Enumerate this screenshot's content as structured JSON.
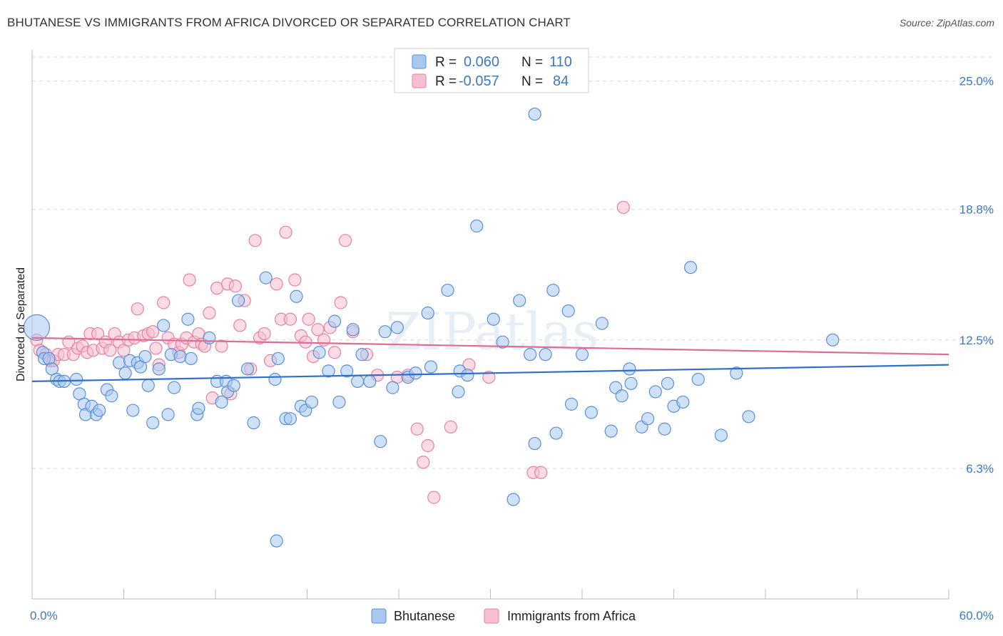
{
  "title": "BHUTANESE VS IMMIGRANTS FROM AFRICA DIVORCED OR SEPARATED CORRELATION CHART",
  "source": "Source: ZipAtlas.com",
  "watermark": "ZIPatlas",
  "colors": {
    "blue_fill": "#a8c8f0",
    "blue_stroke": "#5b8fd6",
    "blue_line": "#2f6fcc",
    "pink_fill": "#f7bfd0",
    "pink_stroke": "#e8809f",
    "pink_line": "#e36a92",
    "axis_text": "#3b78c6",
    "grid": "#d8d8d8"
  },
  "legend": {
    "rows": [
      {
        "r_label": "R =",
        "r_value": "0.060",
        "n_label": "N =",
        "n_value": "110"
      },
      {
        "r_label": "R =",
        "r_value": "-0.057",
        "n_label": "N =",
        "n_value": "84"
      }
    ]
  },
  "chart_data": {
    "type": "scatter",
    "xlabel": "",
    "ylabel": "Divorced or Separated",
    "xlim": [
      0,
      60
    ],
    "ylim": [
      0,
      26.5
    ],
    "x_tick_labels": [
      "0.0%",
      "60.0%"
    ],
    "y_ticks": [
      6.3,
      12.5,
      18.8,
      25.0
    ],
    "y_tick_labels": [
      "6.3%",
      "12.5%",
      "18.8%",
      "25.0%"
    ],
    "grid": "horizontal dashed",
    "legend_position": "top-center",
    "series": [
      {
        "name": "Bhutanese",
        "color": "blue",
        "trend": {
          "x": [
            0,
            60
          ],
          "y": [
            10.5,
            11.3
          ]
        },
        "points": [
          [
            0.3,
            13.1
          ],
          [
            0.7,
            11.9
          ],
          [
            0.8,
            11.6
          ],
          [
            1.1,
            11.6
          ],
          [
            1.3,
            11.1
          ],
          [
            1.6,
            10.6
          ],
          [
            1.8,
            10.5
          ],
          [
            2.1,
            10.5
          ],
          [
            2.9,
            10.6
          ],
          [
            3.1,
            9.9
          ],
          [
            3.4,
            9.4
          ],
          [
            3.5,
            8.9
          ],
          [
            3.9,
            9.3
          ],
          [
            4.2,
            8.9
          ],
          [
            4.4,
            9.1
          ],
          [
            4.9,
            10.1
          ],
          [
            5.2,
            9.8
          ],
          [
            5.7,
            11.4
          ],
          [
            6.1,
            10.9
          ],
          [
            6.4,
            11.5
          ],
          [
            6.6,
            9.1
          ],
          [
            6.9,
            11.4
          ],
          [
            7.1,
            11.2
          ],
          [
            7.4,
            11.7
          ],
          [
            7.6,
            10.3
          ],
          [
            7.9,
            8.5
          ],
          [
            8.3,
            11.1
          ],
          [
            8.6,
            13.2
          ],
          [
            8.9,
            8.9
          ],
          [
            9.1,
            11.8
          ],
          [
            9.3,
            10.2
          ],
          [
            9.7,
            11.7
          ],
          [
            10.2,
            13.5
          ],
          [
            10.4,
            11.6
          ],
          [
            10.8,
            8.9
          ],
          [
            10.9,
            9.2
          ],
          [
            11.6,
            12.6
          ],
          [
            12.1,
            10.5
          ],
          [
            12.4,
            9.5
          ],
          [
            12.7,
            10.5
          ],
          [
            12.8,
            10.0
          ],
          [
            13.2,
            10.3
          ],
          [
            13.5,
            14.4
          ],
          [
            14.1,
            11.1
          ],
          [
            14.5,
            8.5
          ],
          [
            15.3,
            15.5
          ],
          [
            15.9,
            10.6
          ],
          [
            16.1,
            11.6
          ],
          [
            16.6,
            8.7
          ],
          [
            16.9,
            8.7
          ],
          [
            17.3,
            14.6
          ],
          [
            17.6,
            9.3
          ],
          [
            17.9,
            9.1
          ],
          [
            18.3,
            9.5
          ],
          [
            18.8,
            11.9
          ],
          [
            19.4,
            11.0
          ],
          [
            19.8,
            13.4
          ],
          [
            20.1,
            9.5
          ],
          [
            20.6,
            11.0
          ],
          [
            21.0,
            13.0
          ],
          [
            21.3,
            10.5
          ],
          [
            21.6,
            11.8
          ],
          [
            22.1,
            10.5
          ],
          [
            22.8,
            7.6
          ],
          [
            23.1,
            12.9
          ],
          [
            23.6,
            10.2
          ],
          [
            23.9,
            13.1
          ],
          [
            24.6,
            10.7
          ],
          [
            25.1,
            10.9
          ],
          [
            25.9,
            13.8
          ],
          [
            26.1,
            11.2
          ],
          [
            27.2,
            14.9
          ],
          [
            27.9,
            10.0
          ],
          [
            28.0,
            11.0
          ],
          [
            28.5,
            10.8
          ],
          [
            29.1,
            18.0
          ],
          [
            30.2,
            13.5
          ],
          [
            30.8,
            12.4
          ],
          [
            31.5,
            4.8
          ],
          [
            31.9,
            14.4
          ],
          [
            32.6,
            11.8
          ],
          [
            32.9,
            23.4
          ],
          [
            32.9,
            7.5
          ],
          [
            33.6,
            11.8
          ],
          [
            34.1,
            14.9
          ],
          [
            34.3,
            8.0
          ],
          [
            35.1,
            13.9
          ],
          [
            35.3,
            9.4
          ],
          [
            36.0,
            11.8
          ],
          [
            36.6,
            9.0
          ],
          [
            37.3,
            13.3
          ],
          [
            37.9,
            8.1
          ],
          [
            38.2,
            10.2
          ],
          [
            38.6,
            9.8
          ],
          [
            39.1,
            11.1
          ],
          [
            39.2,
            10.4
          ],
          [
            39.9,
            8.3
          ],
          [
            40.3,
            8.7
          ],
          [
            40.8,
            10.0
          ],
          [
            41.4,
            8.2
          ],
          [
            41.6,
            10.4
          ],
          [
            42.0,
            9.3
          ],
          [
            42.6,
            9.5
          ],
          [
            43.1,
            16.0
          ],
          [
            43.6,
            10.6
          ],
          [
            45.1,
            7.9
          ],
          [
            46.1,
            10.9
          ],
          [
            46.9,
            8.8
          ],
          [
            52.4,
            12.5
          ],
          [
            16.0,
            2.8
          ]
        ]
      },
      {
        "name": "Immigrants from Africa",
        "color": "pink",
        "trend": {
          "x": [
            0,
            60
          ],
          "y": [
            12.6,
            11.8
          ]
        },
        "points": [
          [
            0.3,
            12.5
          ],
          [
            0.5,
            12.0
          ],
          [
            0.9,
            11.8
          ],
          [
            1.2,
            11.5
          ],
          [
            1.4,
            11.5
          ],
          [
            1.7,
            11.8
          ],
          [
            2.1,
            11.8
          ],
          [
            2.4,
            12.4
          ],
          [
            2.7,
            11.8
          ],
          [
            3.0,
            12.1
          ],
          [
            3.3,
            12.2
          ],
          [
            3.6,
            11.9
          ],
          [
            3.8,
            12.8
          ],
          [
            4.0,
            12.0
          ],
          [
            4.3,
            12.8
          ],
          [
            4.6,
            12.1
          ],
          [
            4.8,
            12.4
          ],
          [
            5.1,
            12.0
          ],
          [
            5.4,
            12.8
          ],
          [
            5.7,
            12.4
          ],
          [
            6.0,
            12.0
          ],
          [
            6.3,
            12.5
          ],
          [
            6.7,
            12.6
          ],
          [
            6.9,
            14.0
          ],
          [
            7.3,
            12.7
          ],
          [
            7.6,
            12.8
          ],
          [
            7.9,
            12.9
          ],
          [
            8.1,
            12.1
          ],
          [
            8.3,
            11.3
          ],
          [
            8.6,
            14.3
          ],
          [
            8.9,
            12.6
          ],
          [
            9.3,
            12.3
          ],
          [
            9.6,
            11.9
          ],
          [
            9.8,
            12.3
          ],
          [
            10.1,
            12.6
          ],
          [
            10.3,
            15.4
          ],
          [
            10.6,
            12.4
          ],
          [
            10.9,
            12.8
          ],
          [
            11.1,
            12.3
          ],
          [
            11.3,
            12.2
          ],
          [
            11.6,
            13.8
          ],
          [
            11.8,
            9.7
          ],
          [
            12.1,
            15.0
          ],
          [
            12.4,
            12.2
          ],
          [
            12.8,
            15.2
          ],
          [
            13.0,
            9.9
          ],
          [
            13.3,
            15.1
          ],
          [
            13.6,
            13.2
          ],
          [
            13.9,
            14.4
          ],
          [
            14.3,
            11.1
          ],
          [
            14.6,
            17.3
          ],
          [
            14.9,
            12.6
          ],
          [
            15.2,
            12.8
          ],
          [
            15.6,
            11.5
          ],
          [
            16.0,
            15.2
          ],
          [
            16.3,
            13.5
          ],
          [
            16.6,
            17.7
          ],
          [
            16.9,
            13.5
          ],
          [
            17.2,
            15.4
          ],
          [
            17.6,
            12.7
          ],
          [
            17.9,
            12.4
          ],
          [
            18.1,
            13.5
          ],
          [
            18.4,
            11.7
          ],
          [
            18.7,
            13.0
          ],
          [
            19.1,
            12.5
          ],
          [
            19.5,
            13.1
          ],
          [
            19.8,
            11.9
          ],
          [
            20.2,
            14.3
          ],
          [
            20.5,
            17.3
          ],
          [
            21.0,
            12.9
          ],
          [
            21.9,
            11.8
          ],
          [
            22.6,
            10.8
          ],
          [
            23.9,
            10.7
          ],
          [
            24.6,
            10.8
          ],
          [
            25.2,
            8.2
          ],
          [
            25.6,
            6.6
          ],
          [
            25.9,
            7.4
          ],
          [
            26.3,
            4.9
          ],
          [
            27.4,
            8.3
          ],
          [
            28.6,
            11.3
          ],
          [
            29.9,
            10.7
          ],
          [
            32.8,
            6.1
          ],
          [
            33.3,
            6.1
          ],
          [
            38.7,
            18.9
          ]
        ]
      }
    ]
  },
  "bottom_legend": [
    "Bhutanese",
    "Immigrants from Africa"
  ]
}
